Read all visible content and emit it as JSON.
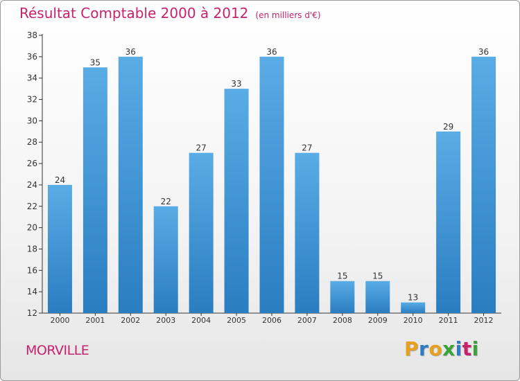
{
  "title": "Résultat Comptable 2000 à 2012",
  "unit": "(en milliers d'€)",
  "town": "MORVILLE",
  "logo": {
    "text": "Proxiti",
    "colors": [
      "#e8a020",
      "#2d7bc4",
      "#e8a020",
      "#3aa23a",
      "#2d7bc4",
      "#c8216b",
      "#3aa23a"
    ]
  },
  "colors": {
    "title": "#c8216b",
    "bar_light": "#5aace6",
    "bar_dark": "#2a7dc0",
    "axis": "#333333"
  },
  "chart_data": {
    "type": "bar",
    "categories": [
      "2000",
      "2001",
      "2002",
      "2003",
      "2004",
      "2005",
      "2006",
      "2007",
      "2008",
      "2009",
      "2010",
      "2011",
      "2012"
    ],
    "values": [
      24,
      35,
      36,
      22,
      27,
      33,
      36,
      27,
      15,
      15,
      13,
      29,
      36
    ],
    "ylim": [
      12,
      38
    ],
    "yticks": [
      12,
      14,
      16,
      18,
      20,
      22,
      24,
      26,
      28,
      30,
      32,
      34,
      36,
      38
    ],
    "grid": false
  }
}
